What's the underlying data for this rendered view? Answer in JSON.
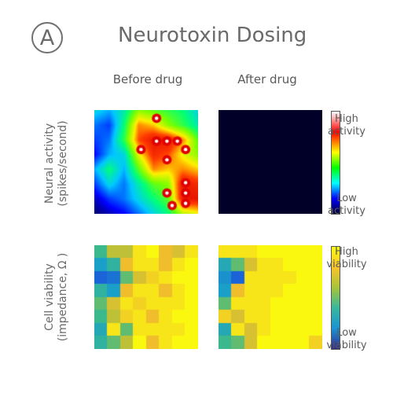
{
  "panel_letter": "A",
  "title": "Neurotoxin Dosing",
  "columns": {
    "before": "Before drug",
    "after": "After drug"
  },
  "rows": {
    "activity": {
      "line1": "Neural activity",
      "line2": "(spikes/second)"
    },
    "viability": {
      "line1": "Cell viability",
      "line2": "(impedance, Ω )"
    }
  },
  "colorbars": {
    "activity": {
      "high": [
        "High",
        "activity"
      ],
      "low": [
        "Low",
        "activity"
      ]
    },
    "viability": {
      "high": [
        "High",
        "viability"
      ],
      "low": [
        "Low",
        "viability"
      ]
    }
  },
  "chart_data": [
    {
      "type": "heatmap",
      "title": "Neural activity — Before drug",
      "colormap": "jet",
      "range": [
        0,
        1
      ],
      "grid_shape": [
        8,
        8
      ],
      "values": [
        [
          0.35,
          0.3,
          0.4,
          0.6,
          0.55,
          0.5,
          0.45,
          0.35
        ],
        [
          0.25,
          0.2,
          0.45,
          0.8,
          0.75,
          0.6,
          0.5,
          0.4
        ],
        [
          0.2,
          0.25,
          0.5,
          0.85,
          0.95,
          0.95,
          0.8,
          0.55
        ],
        [
          0.15,
          0.3,
          0.35,
          0.7,
          0.9,
          0.85,
          0.7,
          0.6
        ],
        [
          0.3,
          0.45,
          0.3,
          0.55,
          0.8,
          0.75,
          0.8,
          0.75
        ],
        [
          0.2,
          0.35,
          0.25,
          0.4,
          0.55,
          0.6,
          0.95,
          0.9
        ],
        [
          0.1,
          0.2,
          0.25,
          0.35,
          0.45,
          0.55,
          0.95,
          0.95
        ],
        [
          0.05,
          0.1,
          0.15,
          0.25,
          0.35,
          0.45,
          0.65,
          0.7
        ]
      ],
      "hotspots": [
        [
          0.6,
          0.08
        ],
        [
          0.6,
          0.3
        ],
        [
          0.7,
          0.3
        ],
        [
          0.8,
          0.3
        ],
        [
          0.45,
          0.38
        ],
        [
          0.88,
          0.38
        ],
        [
          0.7,
          0.48
        ],
        [
          0.88,
          0.7
        ],
        [
          0.88,
          0.8
        ],
        [
          0.7,
          0.8
        ],
        [
          0.88,
          0.9
        ],
        [
          0.75,
          0.92
        ]
      ]
    },
    {
      "type": "heatmap",
      "title": "Neural activity — After drug",
      "colormap": "jet",
      "range": [
        0,
        1
      ],
      "grid_shape": [
        8,
        8
      ],
      "values": [
        [
          0,
          0,
          0,
          0,
          0,
          0,
          0,
          0
        ],
        [
          0,
          0,
          0,
          0,
          0,
          0,
          0,
          0
        ],
        [
          0,
          0,
          0,
          0,
          0,
          0,
          0,
          0
        ],
        [
          0,
          0,
          0,
          0,
          0,
          0,
          0,
          0
        ],
        [
          0,
          0,
          0,
          0,
          0,
          0,
          0,
          0
        ],
        [
          0,
          0,
          0,
          0,
          0,
          0,
          0,
          0
        ],
        [
          0,
          0,
          0,
          0,
          0,
          0,
          0,
          0
        ],
        [
          0,
          0,
          0,
          0,
          0,
          0,
          0,
          0
        ]
      ]
    },
    {
      "type": "heatmap",
      "title": "Cell viability — Before drug",
      "colormap": "parula",
      "range": [
        0,
        1
      ],
      "grid_shape": [
        8,
        8
      ],
      "values": [
        [
          0.55,
          0.75,
          0.75,
          0.95,
          1.0,
          0.85,
          0.8,
          0.95
        ],
        [
          0.4,
          0.5,
          0.85,
          0.95,
          0.95,
          0.85,
          0.95,
          1.0
        ],
        [
          0.2,
          0.25,
          0.6,
          0.8,
          0.9,
          0.95,
          1.0,
          1.0
        ],
        [
          0.5,
          0.4,
          0.85,
          0.95,
          0.95,
          0.85,
          0.95,
          1.0
        ],
        [
          0.6,
          0.8,
          0.95,
          0.9,
          0.95,
          0.95,
          0.95,
          1.0
        ],
        [
          0.55,
          0.75,
          0.9,
          0.95,
          0.85,
          0.95,
          1.0,
          1.0
        ],
        [
          0.45,
          0.95,
          0.6,
          0.95,
          0.95,
          0.95,
          0.95,
          1.0
        ],
        [
          0.5,
          0.6,
          0.75,
          1.0,
          0.85,
          0.95,
          1.0,
          1.0
        ]
      ]
    },
    {
      "type": "heatmap",
      "title": "Cell viability — After drug",
      "colormap": "parula",
      "range": [
        0,
        1
      ],
      "grid_shape": [
        8,
        8
      ],
      "values": [
        [
          0.95,
          0.95,
          0.95,
          1.0,
          1.0,
          1.0,
          1.0,
          1.0
        ],
        [
          0.45,
          0.6,
          0.8,
          0.95,
          0.95,
          1.0,
          1.0,
          1.0
        ],
        [
          0.35,
          0.2,
          0.95,
          0.95,
          0.95,
          0.95,
          1.0,
          1.0
        ],
        [
          0.4,
          0.85,
          0.95,
          0.95,
          0.95,
          1.0,
          1.0,
          1.0
        ],
        [
          0.6,
          0.95,
          0.95,
          0.95,
          1.0,
          1.0,
          1.0,
          1.0
        ],
        [
          0.9,
          0.8,
          0.95,
          0.95,
          1.0,
          1.0,
          1.0,
          1.0
        ],
        [
          0.45,
          0.95,
          0.8,
          0.95,
          1.0,
          1.0,
          1.0,
          1.0
        ],
        [
          0.55,
          0.6,
          0.8,
          1.0,
          1.0,
          1.0,
          1.0,
          0.9
        ]
      ]
    }
  ]
}
